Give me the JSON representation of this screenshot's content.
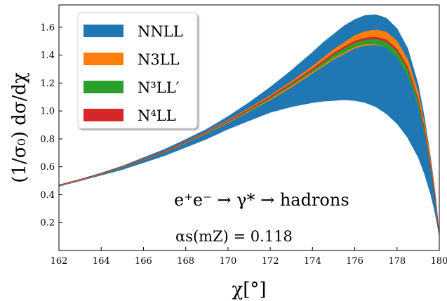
{
  "chart_data": {
    "type": "area",
    "title": "",
    "xlabel": "χ[°]",
    "ylabel": "(1/σ₀) dσ/dχ",
    "xlim": [
      162,
      180
    ],
    "ylim": [
      0,
      1.76
    ],
    "x_ticks": [
      "162",
      "164",
      "166",
      "168",
      "170",
      "172",
      "174",
      "176",
      "178",
      "180"
    ],
    "y_ticks": [
      "0.2",
      "0.4",
      "0.6",
      "0.8",
      "1.0",
      "1.2",
      "1.4",
      "1.6"
    ],
    "grid": false,
    "legend_position": "top-left",
    "x": [
      162,
      163,
      164,
      165,
      166,
      167,
      168,
      169,
      170,
      171,
      172,
      173,
      174,
      174.5,
      175,
      175.5,
      176,
      176.5,
      177,
      177.5,
      178,
      178.5,
      179,
      179.3,
      179.6,
      179.8,
      180
    ],
    "series": [
      {
        "name": "NNLL",
        "color": "#1f77b4",
        "lower": [
          0.46,
          0.5,
          0.54,
          0.58,
          0.63,
          0.68,
          0.74,
          0.8,
          0.87,
          0.93,
          0.99,
          1.03,
          1.06,
          1.07,
          1.075,
          1.08,
          1.075,
          1.06,
          1.03,
          0.98,
          0.91,
          0.81,
          0.67,
          0.55,
          0.4,
          0.27,
          0.11
        ],
        "upper": [
          0.47,
          0.51,
          0.555,
          0.605,
          0.665,
          0.725,
          0.795,
          0.87,
          0.96,
          1.06,
          1.17,
          1.29,
          1.42,
          1.49,
          1.55,
          1.61,
          1.655,
          1.685,
          1.69,
          1.665,
          1.59,
          1.45,
          1.19,
          0.95,
          0.65,
          0.42,
          0.11
        ]
      },
      {
        "name": "N3LL",
        "color": "#ff7f0e",
        "lower": [
          0.465,
          0.505,
          0.548,
          0.595,
          0.648,
          0.705,
          0.77,
          0.84,
          0.915,
          0.995,
          1.08,
          1.17,
          1.27,
          1.32,
          1.37,
          1.41,
          1.45,
          1.47,
          1.475,
          1.455,
          1.39,
          1.27,
          1.05,
          0.85,
          0.59,
          0.38,
          0.105
        ],
        "upper": [
          0.47,
          0.51,
          0.553,
          0.601,
          0.655,
          0.713,
          0.78,
          0.853,
          0.933,
          1.02,
          1.11,
          1.21,
          1.32,
          1.38,
          1.44,
          1.49,
          1.54,
          1.57,
          1.58,
          1.565,
          1.5,
          1.37,
          1.13,
          0.91,
          0.63,
          0.41,
          0.11
        ]
      },
      {
        "name": "N³LL′",
        "color": "#2ca02c",
        "lower": [
          0.467,
          0.507,
          0.55,
          0.597,
          0.65,
          0.708,
          0.773,
          0.844,
          0.92,
          1.0,
          1.088,
          1.18,
          1.28,
          1.33,
          1.38,
          1.42,
          1.46,
          1.48,
          1.48,
          1.455,
          1.385,
          1.26,
          1.04,
          0.84,
          0.58,
          0.375,
          0.105
        ],
        "upper": [
          0.469,
          0.509,
          0.552,
          0.6,
          0.653,
          0.711,
          0.777,
          0.849,
          0.927,
          1.011,
          1.1,
          1.196,
          1.3,
          1.355,
          1.41,
          1.455,
          1.495,
          1.515,
          1.52,
          1.5,
          1.435,
          1.31,
          1.08,
          0.87,
          0.6,
          0.39,
          0.11
        ]
      },
      {
        "name": "N⁴LL",
        "color": "#d62728",
        "lower": [
          0.468,
          0.508,
          0.551,
          0.599,
          0.652,
          0.71,
          0.776,
          0.848,
          0.925,
          1.008,
          1.097,
          1.192,
          1.295,
          1.35,
          1.405,
          1.45,
          1.49,
          1.512,
          1.518,
          1.498,
          1.43,
          1.305,
          1.075,
          0.865,
          0.598,
          0.388,
          0.108
        ],
        "upper": [
          0.469,
          0.509,
          0.552,
          0.6,
          0.653,
          0.712,
          0.778,
          0.85,
          0.928,
          1.012,
          1.102,
          1.198,
          1.302,
          1.358,
          1.414,
          1.46,
          1.501,
          1.523,
          1.53,
          1.51,
          1.443,
          1.318,
          1.085,
          0.873,
          0.604,
          0.392,
          0.11
        ]
      }
    ],
    "annotations": [
      {
        "id": "process",
        "text": "e⁺e⁻ → γ* → hadrons"
      },
      {
        "id": "alpha",
        "text": "αs(mZ) = 0.118"
      }
    ]
  }
}
